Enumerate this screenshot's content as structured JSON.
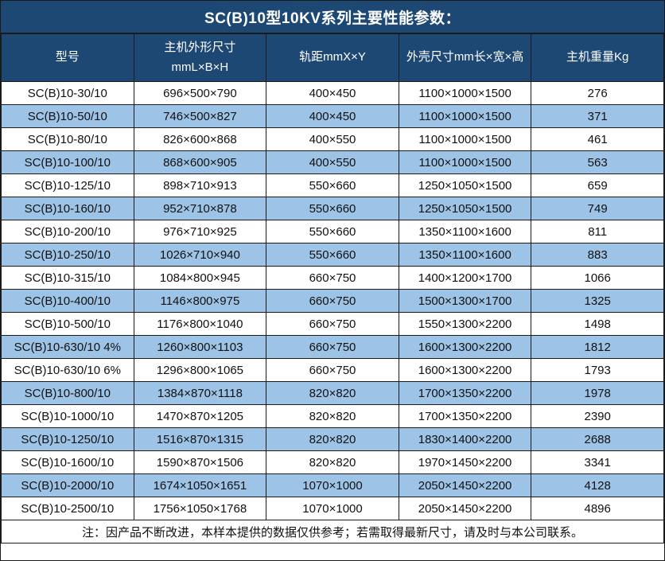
{
  "title": "SC(B)10型10KV系列主要性能参数：",
  "colors": {
    "header_bg": "#1E4874",
    "header_text": "#FFFFFF",
    "row_bg": "#FFFFFF",
    "row_alt_bg": "#9DC3E6",
    "border": "#1A1A1A",
    "body_text": "#111111"
  },
  "columns": [
    {
      "key": "model",
      "label": "型号"
    },
    {
      "key": "main-dimensions",
      "label_line1": "主机外形尺寸",
      "label_line2": "mmL×B×H"
    },
    {
      "key": "rail-gauge",
      "label": "轨距mmX×Y"
    },
    {
      "key": "shell-dimensions",
      "label": "外壳尺寸mm长×宽×高"
    },
    {
      "key": "weight",
      "label": "主机重量Kg"
    }
  ],
  "rows": [
    [
      "SC(B)10-30/10",
      "696×500×790",
      "400×450",
      "1100×1000×1500",
      "276"
    ],
    [
      "SC(B)10-50/10",
      "746×500×827",
      "400×450",
      "1100×1000×1500",
      "371"
    ],
    [
      "SC(B)10-80/10",
      "826×600×868",
      "400×550",
      "1100×1000×1500",
      "461"
    ],
    [
      "SC(B)10-100/10",
      "868×600×905",
      "400×550",
      "1100×1000×1500",
      "563"
    ],
    [
      "SC(B)10-125/10",
      "898×710×913",
      "550×660",
      "1250×1050×1500",
      "659"
    ],
    [
      "SC(B)10-160/10",
      "952×710×878",
      "550×660",
      "1250×1050×1500",
      "749"
    ],
    [
      "SC(B)10-200/10",
      "976×710×925",
      "550×660",
      "1350×1100×1600",
      "811"
    ],
    [
      "SC(B)10-250/10",
      "1026×710×940",
      "550×660",
      "1350×1100×1600",
      "883"
    ],
    [
      "SC(B)10-315/10",
      "1084×800×945",
      "660×750",
      "1400×1200×1700",
      "1066"
    ],
    [
      "SC(B)10-400/10",
      "1146×800×975",
      "660×750",
      "1500×1300×1700",
      "1325"
    ],
    [
      "SC(B)10-500/10",
      "1176×800×1040",
      "660×750",
      "1550×1300×2200",
      "1498"
    ],
    [
      "SC(B)10-630/10 4%",
      "1260×800×1103",
      "660×750",
      "1600×1300×2200",
      "1812"
    ],
    [
      "SC(B)10-630/10 6%",
      "1296×800×1065",
      "660×750",
      "1600×1300×2200",
      "1793"
    ],
    [
      "SC(B)10-800/10",
      "1384×870×1118",
      "820×820",
      "1700×1350×2200",
      "1978"
    ],
    [
      "SC(B)10-1000/10",
      "1470×870×1205",
      "820×820",
      "1700×1350×2200",
      "2390"
    ],
    [
      "SC(B)10-1250/10",
      "1516×870×1315",
      "820×820",
      "1830×1400×2200",
      "2688"
    ],
    [
      "SC(B)10-1600/10",
      "1590×870×1506",
      "820×820",
      "1970×1450×2200",
      "3341"
    ],
    [
      "SC(B)10-2000/10",
      "1674×1050×1651",
      "1070×1000",
      "2050×1450×2200",
      "4128"
    ],
    [
      "SC(B)10-2500/10",
      "1756×1050×1768",
      "1070×1000",
      "2050×1450×2200",
      "4896"
    ]
  ],
  "note": "注：因产品不断改进，本样本提供的数据仅供参考；若需取得最新尺寸，请及时与本公司联系。"
}
